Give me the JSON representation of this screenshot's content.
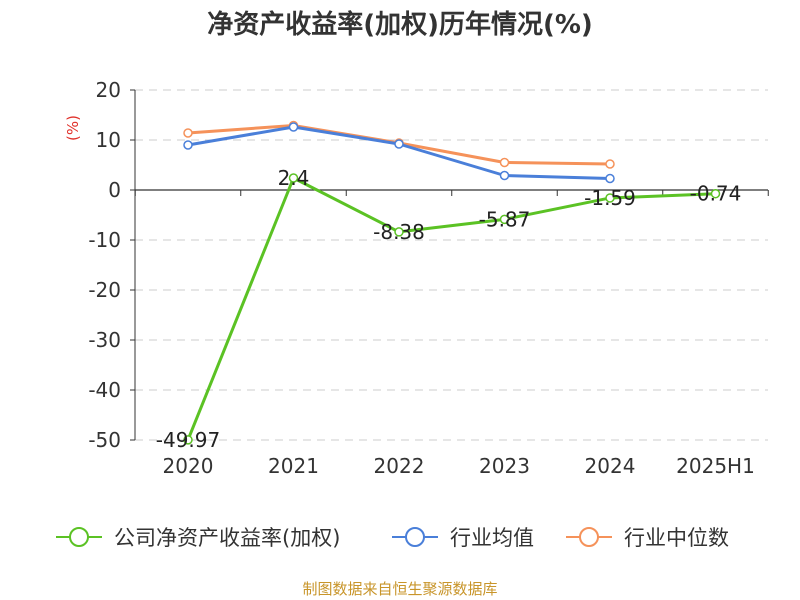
{
  "title": "净资产收益率(加权)历年情况(%)",
  "source": "制图数据来自恒生聚源数据库",
  "chart_data": {
    "type": "line",
    "title": "净资产收益率(加权)历年情况(%)",
    "ylabel": "(%)",
    "xlabel": "",
    "categories": [
      "2020",
      "2021",
      "2022",
      "2023",
      "2024",
      "2025H1"
    ],
    "ylim": [
      -50,
      20
    ],
    "yticks": [
      20,
      10,
      0,
      -10,
      -20,
      -30,
      -40,
      -50
    ],
    "grid": true,
    "legend_position": "bottom",
    "series": [
      {
        "name": "公司净资产收益率(加权)",
        "color": "#5bc224",
        "values": [
          -49.97,
          2.4,
          -8.38,
          -5.87,
          -1.59,
          -0.74
        ],
        "show_labels": true
      },
      {
        "name": "行业均值",
        "color": "#4a7fd9",
        "values": [
          9.0,
          12.6,
          9.2,
          2.9,
          2.3,
          null
        ],
        "show_labels": false
      },
      {
        "name": "行业中位数",
        "color": "#f5925a",
        "values": [
          11.4,
          12.9,
          9.4,
          5.5,
          5.2,
          null
        ],
        "show_labels": false
      }
    ],
    "data_labels": [
      "-49.97",
      "2.4",
      "-8.38",
      "-5.87",
      "-1.59",
      "-0.74"
    ]
  }
}
